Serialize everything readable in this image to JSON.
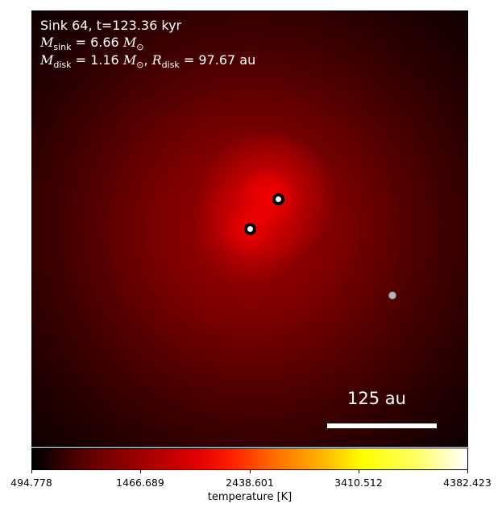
{
  "panel": {
    "line1": "Sink 64, t=123.36 kyr",
    "msink_symbol": "M",
    "msink_sub": "sink",
    "msink_value": " = 6.66 ",
    "msun_symbol": "M",
    "msun_sub": "⊙",
    "mdisk_symbol": "M",
    "mdisk_sub": "disk",
    "mdisk_value": " = 1.16 ",
    "mdisk_sun_symbol": "M",
    "mdisk_sun_sub": "⊙",
    "rdisk_prefix": ", ",
    "rdisk_symbol": "R",
    "rdisk_sub": "disk",
    "rdisk_value": " = 97.67 au"
  },
  "scalebar": {
    "label": "125 au"
  },
  "colorbar": {
    "label": "temperature [K]",
    "ticks": [
      "494.778",
      "1466.689",
      "2438.601",
      "3410.512",
      "4382.423"
    ],
    "min": 494.778,
    "max": 4382.423,
    "colormap": "hot"
  },
  "sinks": [
    {
      "type": "major"
    },
    {
      "type": "major"
    },
    {
      "type": "minor"
    }
  ]
}
